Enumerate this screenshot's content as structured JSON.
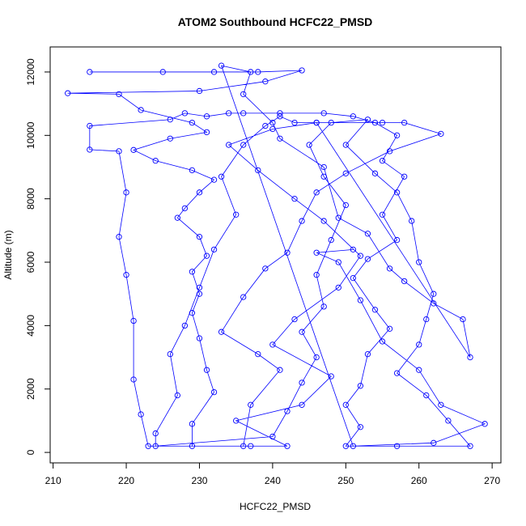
{
  "chart_data": {
    "type": "scatter-line",
    "title": "ATOM2 Southbound HCFC22_PMSD",
    "x_label": "HCFC22_PMSD",
    "y_label": "Altitude (m)",
    "color": "#0000ff",
    "xlim": [
      209.6,
      271.2
    ],
    "ylim": [
      -330,
      12790
    ],
    "xticks": [
      210,
      220,
      230,
      240,
      250,
      260,
      270
    ],
    "yticks": [
      0,
      2000,
      4000,
      6000,
      8000,
      10000,
      12000
    ],
    "x": [
      215,
      225,
      232,
      238,
      244,
      239,
      230,
      212,
      219,
      222,
      229,
      231,
      226,
      221,
      224,
      229,
      232,
      230,
      228,
      227,
      230,
      231,
      229,
      230,
      229,
      230,
      231,
      232,
      229,
      229,
      237,
      242,
      235,
      244,
      248,
      240,
      243,
      249,
      252,
      247,
      243,
      238,
      234,
      240,
      246,
      255,
      258,
      263,
      256,
      250,
      246,
      244,
      242,
      239,
      236,
      233,
      238,
      241,
      237,
      236,
      223,
      222,
      221,
      221,
      220,
      219,
      220,
      219,
      215,
      215,
      226,
      228,
      231,
      234,
      236,
      241,
      247,
      251,
      254,
      257,
      255,
      258,
      255,
      257,
      253,
      251,
      254,
      256,
      253,
      252,
      250,
      252,
      250,
      257,
      267,
      264,
      261,
      257,
      260,
      261,
      262,
      260,
      259,
      257,
      254,
      250,
      253,
      248,
      245,
      247,
      250,
      248,
      246,
      247,
      244,
      246,
      244,
      242,
      240,
      224,
      224,
      227,
      226,
      228,
      230,
      232,
      235,
      233,
      236,
      239,
      241,
      243,
      246,
      267,
      266,
      262,
      258,
      256,
      253,
      249,
      247,
      241,
      240,
      236,
      237,
      233,
      251,
      262,
      269,
      263,
      260,
      255,
      252,
      249,
      246,
      251
    ],
    "values": [
      12000,
      12000,
      12000,
      12000,
      12050,
      11700,
      11400,
      11330,
      11300,
      10800,
      10400,
      10100,
      9900,
      9540,
      9200,
      8900,
      8600,
      8200,
      7700,
      7400,
      6800,
      6200,
      5700,
      5000,
      4400,
      3600,
      2600,
      1900,
      900,
      200,
      200,
      200,
      1000,
      1500,
      2400,
      3400,
      4200,
      5200,
      6200,
      7300,
      8000,
      8900,
      9700,
      10200,
      10400,
      10400,
      10400,
      10050,
      9500,
      8800,
      8200,
      7300,
      6300,
      5800,
      4900,
      3800,
      3100,
      2600,
      1500,
      200,
      200,
      1200,
      2300,
      4150,
      5600,
      6800,
      8200,
      9500,
      9550,
      10300,
      10500,
      10700,
      10600,
      10700,
      10700,
      10700,
      10700,
      10600,
      10400,
      10000,
      9200,
      8700,
      7500,
      6700,
      6100,
      5500,
      4500,
      3900,
      3100,
      2100,
      1500,
      800,
      200,
      200,
      200,
      1000,
      1800,
      2500,
      3400,
      4200,
      5000,
      6000,
      7300,
      8200,
      8800,
      9700,
      10500,
      10400,
      9700,
      8700,
      7800,
      6700,
      5600,
      4600,
      3800,
      3000,
      2200,
      1300,
      500,
      200,
      600,
      1800,
      3100,
      4000,
      5200,
      6400,
      7500,
      8700,
      9700,
      10300,
      10600,
      10400,
      10400,
      3000,
      4200,
      4700,
      5400,
      5800,
      6900,
      7400,
      9000,
      9900,
      10400,
      11300,
      12000,
      12200,
      200,
      300,
      900,
      1500,
      2600,
      3500,
      4800,
      6000,
      6300,
      6400
    ]
  }
}
